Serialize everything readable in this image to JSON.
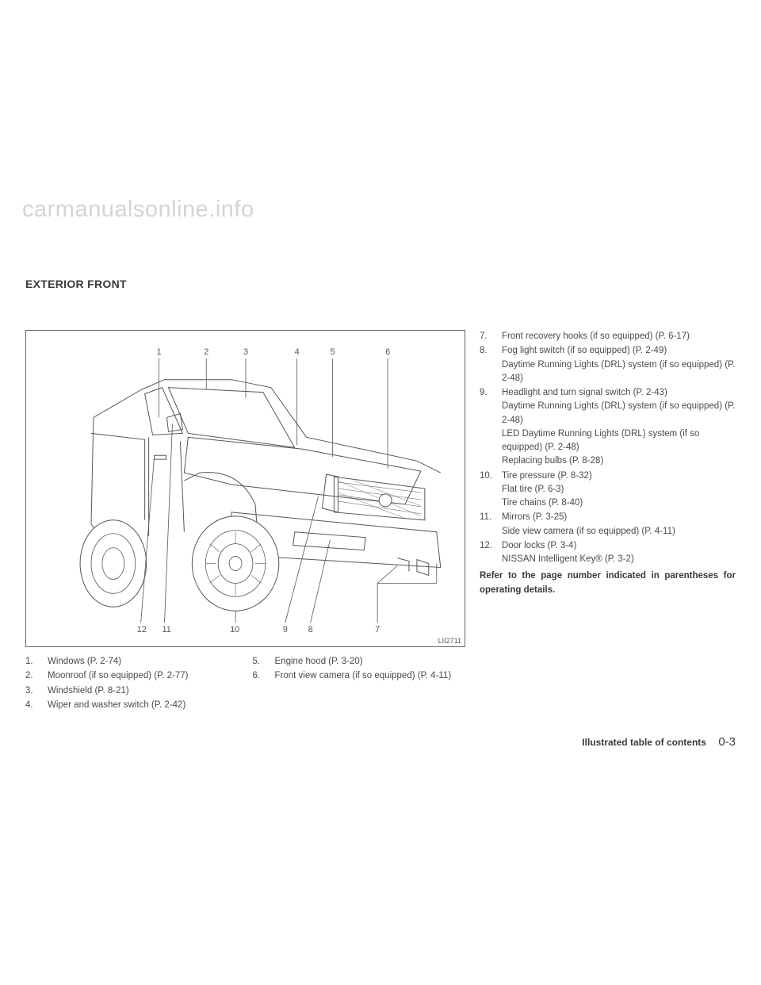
{
  "watermark": "carmanualsonline.info",
  "section_title": "EXTERIOR FRONT",
  "diagram": {
    "id_label": "LII2711",
    "top_callouts": [
      "1",
      "2",
      "3",
      "4",
      "5",
      "6"
    ],
    "bottom_callouts": [
      "12",
      "11",
      "10",
      "9",
      "8",
      "7"
    ]
  },
  "legend_left_a": [
    {
      "num": "1.",
      "text": "Windows (P. 2-74)"
    },
    {
      "num": "2.",
      "text": "Moonroof (if so equipped) (P. 2-77)"
    },
    {
      "num": "3.",
      "text": "Windshield (P. 8-21)"
    },
    {
      "num": "4.",
      "text": "Wiper and washer switch (P. 2-42)"
    }
  ],
  "legend_left_b": [
    {
      "num": "5.",
      "text": "Engine hood (P. 3-20)"
    },
    {
      "num": "6.",
      "text": "Front view camera (if so equipped) (P. 4-11)"
    }
  ],
  "legend_right": [
    {
      "num": "7.",
      "text": "Front recovery hooks (if so equipped) (P. 6-17)"
    },
    {
      "num": "8.",
      "text": "Fog light switch (if so equipped) (P. 2-49)\nDaytime Running Lights (DRL) system (if so equipped) (P. 2-48)"
    },
    {
      "num": "9.",
      "text": "Headlight and turn signal switch (P. 2-43)\nDaytime Running Lights (DRL) system (if so equipped) (P. 2-48)\nLED Daytime Running Lights (DRL) system (if so equipped) (P. 2-48)\nReplacing bulbs (P. 8-28)"
    },
    {
      "num": "10.",
      "text": "Tire pressure (P. 8-32)\nFlat tire (P. 6-3)\nTire chains (P. 8-40)"
    },
    {
      "num": "11.",
      "text": "Mirrors (P. 3-25)\nSide view camera (if so equipped) (P. 4-11)"
    },
    {
      "num": "12.",
      "text": "Door locks (P. 3-4)\nNISSAN Intelligent Key® (P. 3-2)"
    }
  ],
  "bold_note": "Refer to the page number indicated in parentheses for operating details.",
  "footer": {
    "label": "Illustrated table of contents",
    "page": "0-3"
  }
}
